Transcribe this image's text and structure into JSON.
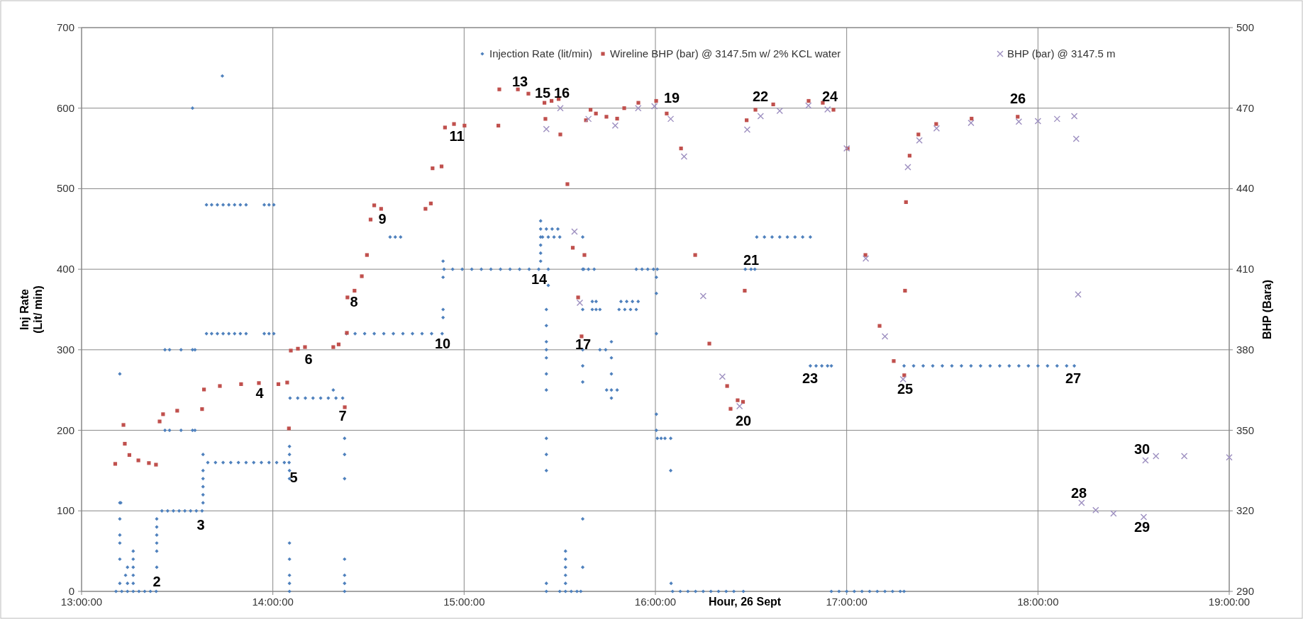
{
  "chart_data": {
    "type": "scatter",
    "xlabel": "Hour, 26 Sept",
    "ylabel": "Inj Rate\n(Lit/ min)",
    "y2label": "BHP (Bara)",
    "xlim": [
      13,
      19
    ],
    "xticks": [
      {
        "value": 13,
        "label": "13:00:00"
      },
      {
        "value": 14,
        "label": "14:00:00"
      },
      {
        "value": 15,
        "label": "15:00:00"
      },
      {
        "value": 16,
        "label": "16:00:00"
      },
      {
        "value": 17,
        "label": "17:00:00"
      },
      {
        "value": 18,
        "label": "18:00:00"
      },
      {
        "value": 19,
        "label": "19:00:00"
      }
    ],
    "ylim": [
      0,
      700
    ],
    "yticks": [
      0,
      100,
      200,
      300,
      400,
      500,
      600,
      700
    ],
    "y2lim": [
      290,
      500
    ],
    "y2ticks": [
      290,
      320,
      350,
      380,
      410,
      440,
      470,
      500
    ],
    "grid": true,
    "legend": "top",
    "series": [
      {
        "name": "Injection Rate  (lit/min)",
        "color": "#4f81bd",
        "marker": "diamond",
        "x": [
          13.18,
          13.21,
          13.24,
          13.27,
          13.3,
          13.33,
          13.36,
          13.39,
          13.2,
          13.2,
          13.2,
          13.2,
          13.2,
          13.2,
          13.2,
          13.205,
          13.24,
          13.24,
          13.27,
          13.27,
          13.27,
          13.27,
          13.27,
          13.23,
          13.393,
          13.393,
          13.393,
          13.393,
          13.393,
          13.393,
          13.42,
          13.45,
          13.48,
          13.51,
          13.54,
          13.57,
          13.6,
          13.63,
          13.436,
          13.46,
          13.52,
          13.58,
          13.593,
          13.436,
          13.46,
          13.52,
          13.58,
          13.593,
          13.635,
          13.635,
          13.635,
          13.635,
          13.635,
          13.635,
          13.66,
          13.7,
          13.74,
          13.78,
          13.82,
          13.86,
          13.9,
          13.94,
          13.98,
          14.02,
          14.06,
          14.085,
          13.653,
          13.68,
          13.71,
          13.74,
          13.77,
          13.8,
          13.83,
          13.86,
          13.955,
          13.98,
          14.005,
          13.653,
          13.68,
          13.71,
          13.74,
          13.77,
          13.8,
          13.83,
          13.86,
          13.955,
          13.98,
          14.005,
          13.58,
          13.736,
          14.087,
          14.087,
          14.087,
          14.087,
          14.087,
          14.087,
          14.087,
          14.087,
          14.087,
          14.09,
          14.13,
          14.17,
          14.21,
          14.25,
          14.29,
          14.33,
          14.365,
          14.316,
          14.375,
          14.375,
          14.375,
          14.375,
          14.375,
          14.375,
          14.375,
          14.385,
          14.43,
          14.48,
          14.53,
          14.58,
          14.63,
          14.68,
          14.73,
          14.78,
          14.83,
          14.885,
          14.613,
          14.64,
          14.668,
          14.89,
          14.89,
          14.89,
          14.89,
          14.895,
          14.94,
          14.99,
          15.04,
          15.09,
          15.14,
          15.19,
          15.24,
          15.29,
          15.34,
          15.39,
          15.4,
          15.4,
          15.4,
          15.4,
          15.4,
          15.4,
          15.43,
          15.46,
          15.49,
          15.41,
          15.44,
          15.47,
          15.5,
          15.44,
          15.44,
          15.43,
          15.43,
          15.43,
          15.43,
          15.43,
          15.43,
          15.43,
          15.43,
          15.43,
          15.43,
          15.43,
          15.43,
          15.5,
          15.53,
          15.56,
          15.59,
          15.61,
          15.53,
          15.53,
          15.53,
          15.53,
          15.53,
          15.62,
          15.62,
          15.62,
          15.62,
          15.62,
          15.62,
          15.62,
          15.62,
          15.625,
          15.65,
          15.68,
          15.67,
          15.69,
          15.67,
          15.69,
          15.71,
          15.71,
          15.74,
          15.745,
          15.77,
          15.8,
          15.77,
          15.77,
          15.77,
          15.77,
          15.82,
          15.85,
          15.88,
          15.91,
          15.81,
          15.84,
          15.87,
          15.9,
          15.9,
          15.93,
          15.96,
          15.99,
          16.01,
          16.005,
          16.005,
          16.005,
          16.005,
          16.005,
          16.01,
          16.03,
          16.05,
          16.08,
          16.08,
          16.082,
          16.09,
          16.13,
          16.17,
          16.21,
          16.25,
          16.29,
          16.33,
          16.37,
          16.41,
          16.46,
          16.47,
          16.5,
          16.52,
          16.53,
          16.57,
          16.61,
          16.65,
          16.69,
          16.73,
          16.77,
          16.81,
          16.81,
          16.84,
          16.87,
          16.9,
          16.92,
          16.92,
          16.96,
          17,
          17.04,
          17.08,
          17.12,
          17.16,
          17.2,
          17.24,
          17.28,
          17.3,
          17.3,
          17.35,
          17.4,
          17.45,
          17.5,
          17.55,
          17.6,
          17.65,
          17.7,
          17.75,
          17.8,
          17.85,
          17.9,
          17.95,
          18,
          18.05,
          18.1,
          18.15,
          18.19
        ],
        "values": [
          0,
          0,
          0,
          0,
          0,
          0,
          0,
          0,
          270,
          110,
          90,
          70,
          60,
          40,
          10,
          110,
          30,
          10,
          50,
          40,
          30,
          20,
          10,
          20,
          90,
          80,
          70,
          60,
          50,
          30,
          100,
          100,
          100,
          100,
          100,
          100,
          100,
          100,
          300,
          300,
          300,
          300,
          300,
          200,
          200,
          200,
          200,
          200,
          110,
          120,
          130,
          140,
          150,
          170,
          160,
          160,
          160,
          160,
          160,
          160,
          160,
          160,
          160,
          160,
          160,
          160,
          480,
          480,
          480,
          480,
          480,
          480,
          480,
          480,
          480,
          480,
          480,
          320,
          320,
          320,
          320,
          320,
          320,
          320,
          320,
          320,
          320,
          320,
          600,
          640,
          180,
          170,
          150,
          140,
          60,
          40,
          20,
          10,
          0,
          240,
          240,
          240,
          240,
          240,
          240,
          240,
          240,
          250,
          190,
          170,
          140,
          40,
          20,
          10,
          0,
          320,
          320,
          320,
          320,
          320,
          320,
          320,
          320,
          320,
          320,
          320,
          440,
          440,
          440,
          410,
          390,
          350,
          340,
          400,
          400,
          400,
          400,
          400,
          400,
          400,
          400,
          400,
          400,
          400,
          460,
          440,
          430,
          420,
          410,
          450,
          450,
          450,
          450,
          440,
          440,
          440,
          440,
          400,
          380,
          350,
          330,
          310,
          300,
          290,
          270,
          250,
          190,
          170,
          150,
          10,
          0,
          0,
          0,
          0,
          0,
          0,
          50,
          40,
          30,
          20,
          10,
          440,
          400,
          350,
          300,
          280,
          260,
          90,
          30,
          400,
          400,
          400,
          360,
          360,
          350,
          350,
          350,
          300,
          300,
          250,
          250,
          250,
          310,
          290,
          270,
          240,
          360,
          360,
          360,
          360,
          350,
          350,
          350,
          350,
          400,
          400,
          400,
          400,
          400,
          390,
          370,
          320,
          220,
          200,
          190,
          190,
          190,
          190,
          150,
          10,
          0,
          0,
          0,
          0,
          0,
          0,
          0,
          0,
          0,
          0,
          400,
          400,
          400,
          440,
          440,
          440,
          440,
          440,
          440,
          440,
          440,
          280,
          280,
          280,
          280,
          280,
          0,
          0,
          0,
          0,
          0,
          0,
          0,
          0,
          0,
          0,
          0,
          280,
          280,
          280,
          280,
          280,
          280,
          280,
          280,
          280,
          280,
          280,
          280,
          280,
          280,
          280,
          280,
          280,
          280,
          280
        ]
      },
      {
        "name": "Wireline BHP (bar) @ 3147.5m w/ 2% KCL water",
        "color": "#c0504d",
        "marker": "square",
        "axis": "y2",
        "x": [
          13.176,
          13.219,
          13.226,
          13.25,
          13.297,
          13.352,
          13.389,
          13.408,
          13.426,
          13.5,
          13.63,
          13.64,
          13.723,
          13.834,
          13.927,
          14.029,
          14.075,
          14.084,
          14.094,
          14.131,
          14.168,
          14.316,
          14.344,
          14.376,
          14.387,
          14.39,
          14.427,
          14.465,
          14.492,
          14.511,
          14.53,
          14.566,
          14.798,
          14.826,
          14.835,
          14.882,
          14.9,
          14.947,
          15.002,
          15.179,
          15.184,
          15.281,
          15.336,
          15.42,
          15.425,
          15.457,
          15.494,
          15.503,
          15.54,
          15.568,
          15.596,
          15.614,
          15.629,
          15.637,
          15.661,
          15.689,
          15.744,
          15.8,
          15.837,
          15.911,
          16.004,
          16.059,
          16.134,
          16.208,
          16.282,
          16.375,
          16.393,
          16.43,
          16.458,
          16.467,
          16.477,
          16.523,
          16.616,
          16.801,
          16.875,
          16.931,
          17.005,
          17.098,
          17.172,
          17.246,
          17.301,
          17.305,
          17.31,
          17.329,
          17.375,
          17.468,
          17.653,
          17.894
        ],
        "values": [
          337.5,
          352,
          345,
          340.8,
          338.8,
          337.8,
          337.2,
          353.3,
          356,
          357.3,
          357.9,
          365.2,
          366.5,
          367.2,
          367.6,
          367.2,
          367.8,
          350.7,
          379.7,
          380.4,
          381,
          381,
          382,
          358.6,
          386.3,
          399.5,
          402,
          407.4,
          415.3,
          428.5,
          433.8,
          432.5,
          432.5,
          434.5,
          447.6,
          448.3,
          462.8,
          464.1,
          463.5,
          463.5,
          477,
          477,
          475.4,
          472,
          466,
          472.7,
          473.4,
          460.2,
          441.7,
          418,
          399.5,
          385,
          415.3,
          465.5,
          469.4,
          468,
          466.8,
          466.1,
          470,
          472,
          472.7,
          468,
          455,
          415.3,
          382.3,
          366.5,
          358,
          361.2,
          360.6,
          402,
          465.5,
          469.4,
          471.4,
          472.7,
          472,
          469.4,
          455,
          415.3,
          388.9,
          375.8,
          370.5,
          402,
          435,
          452.3,
          460.2,
          464.1,
          466.1,
          466.8
        ]
      },
      {
        "name": "BHP (bar) @ 3147.5 m",
        "color": "#9d8fc0",
        "marker": "cross",
        "axis": "y2",
        "x": [
          15.43,
          15.503,
          15.577,
          15.605,
          15.65,
          15.79,
          15.91,
          15.995,
          16.08,
          16.15,
          16.25,
          16.35,
          16.44,
          16.48,
          16.55,
          16.65,
          16.8,
          16.9,
          17,
          17.1,
          17.2,
          17.295,
          17.32,
          17.38,
          17.47,
          17.65,
          17.9,
          18,
          18.1,
          18.19,
          18.2,
          18.21,
          18.228,
          18.302,
          18.395,
          18.553,
          18.562,
          18.617,
          18.765,
          19
        ],
        "values": [
          462.2,
          470,
          424,
          397.5,
          466,
          463.5,
          470,
          470.7,
          466,
          452,
          400,
          370,
          359,
          462,
          467,
          469,
          471,
          469.5,
          455,
          414,
          385,
          369,
          448,
          458,
          462.5,
          464.5,
          465,
          465.2,
          466,
          467,
          458.6,
          400.6,
          323,
          320.3,
          319,
          317.7,
          338.8,
          340.4,
          340.4,
          339.9
        ]
      }
    ],
    "annotations": [
      "2",
      "3",
      "4",
      "5",
      "6",
      "7",
      "8",
      "9",
      "10",
      "11",
      "13",
      "14",
      "15",
      "16",
      "17",
      "19",
      "20",
      "21",
      "22",
      "23",
      "24",
      "25",
      "26",
      "27",
      "28",
      "29",
      "30"
    ]
  }
}
